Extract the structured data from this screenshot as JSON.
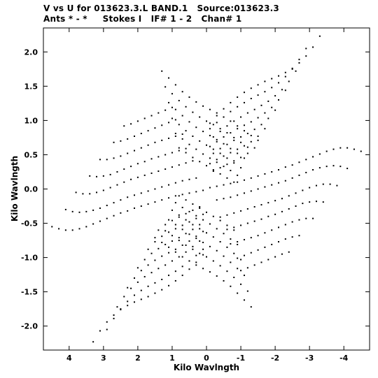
{
  "header": {
    "line1": "V vs U for 013623.3.L BAND.1   Source:013623.3",
    "line2": "Ants * - *     Stokes I   IF# 1 - 2   Chan# 1"
  },
  "chart_data": {
    "type": "scatter",
    "title": "V vs U for 013623.3.L BAND.1   Source:013623.3",
    "subtitle": "Ants * - *     Stokes I   IF# 1 - 2   Chan# 1",
    "xlabel": "Kilo Wavlngth",
    "ylabel": "Kilo Wavlngth",
    "xlim": [
      4.75,
      -4.75
    ],
    "ylim": [
      -2.35,
      2.35
    ],
    "x_reversed": true,
    "grid": false,
    "x_ticks": [
      4,
      3,
      2,
      1,
      0,
      -1,
      -2,
      -3,
      -4
    ],
    "x_tick_labels": [
      "4",
      "3",
      "2",
      "1",
      "0",
      "-1",
      "-2",
      "-3",
      "-4"
    ],
    "y_ticks": [
      2.0,
      1.5,
      1.0,
      0.5,
      0.0,
      -0.5,
      -1.0,
      -1.5,
      -2.0
    ],
    "y_tick_labels": [
      "2.0",
      "1.5",
      "1.0",
      "0.5",
      "0.0",
      "-0.5",
      "-1.0",
      "-1.5",
      "-2.0"
    ],
    "points_u": [
      -3.3,
      -3.1,
      -2.9,
      -2.7,
      -2.5,
      -2.3,
      -2.1,
      -1.9,
      -1.7,
      -1.5,
      -1.3,
      -1.1,
      -0.9,
      -0.7,
      -0.5,
      -0.3,
      -0.1,
      -2.9,
      -2.7,
      -2.5,
      -2.3,
      -2.1,
      -1.9,
      -1.7,
      -1.5,
      -1.3,
      -1.1,
      -0.9,
      -0.7,
      -0.5,
      -0.3,
      -0.1,
      -2.6,
      -2.4,
      -2.2,
      -2.0,
      -1.8,
      -1.6,
      -1.4,
      -1.2,
      -1.0,
      -0.8,
      -0.6,
      -0.4,
      -0.2,
      -2.3,
      -2.1,
      -1.9,
      -1.7,
      -1.5,
      -1.3,
      -1.1,
      -0.9,
      -0.7,
      -0.5,
      -0.3,
      -0.1,
      -2.0,
      -1.8,
      -1.6,
      -1.4,
      -1.2,
      -1.0,
      -0.8,
      -0.6,
      -0.4,
      -0.2,
      -1.7,
      -1.5,
      -1.3,
      -1.1,
      -0.9,
      -0.7,
      -0.5,
      -0.3,
      -0.1,
      -1.4,
      -1.2,
      -1.0,
      -0.8,
      -0.6,
      -0.4,
      -0.2,
      1.3,
      1.1,
      0.9,
      0.7,
      0.5,
      0.3,
      0.1,
      -0.1,
      -0.3,
      -0.5,
      -0.7,
      -0.9,
      -1.1,
      -1.3,
      -1.5,
      1.2,
      1.0,
      0.8,
      0.6,
      0.4,
      0.2,
      0.0,
      -0.2,
      -0.4,
      -0.6,
      -0.8,
      -1.0,
      -1.2,
      1.1,
      0.9,
      0.7,
      0.5,
      0.3,
      0.1,
      -0.1,
      -0.3,
      -0.5,
      -0.7,
      -0.9,
      -1.1,
      1.0,
      0.8,
      0.6,
      0.4,
      0.2,
      0.0,
      -0.2,
      -0.4,
      -0.6,
      -0.8,
      -1.0,
      0.9,
      0.7,
      0.5,
      0.3,
      0.1,
      -0.1,
      -0.3,
      -0.5,
      -0.7,
      -0.9,
      0.8,
      0.6,
      0.4,
      0.2,
      0.0,
      -0.2,
      -0.4,
      -0.6,
      -0.8,
      -4.5,
      -4.3,
      -4.1,
      -3.9,
      -3.7,
      -3.5,
      -3.3,
      -3.1,
      -2.9,
      -2.7,
      -2.5,
      -2.3,
      -2.1,
      -1.9,
      -1.7,
      -1.5,
      -1.3,
      -1.1,
      -0.9,
      -0.7,
      -0.5,
      -0.3,
      -0.1,
      -4.1,
      -3.9,
      -3.7,
      -3.5,
      -3.3,
      -3.1,
      -2.9,
      -2.7,
      -2.5,
      -2.3,
      -2.1,
      -1.9,
      -1.7,
      -1.5,
      -1.3,
      -1.1,
      -0.9,
      -0.7,
      -0.5,
      -0.3,
      -3.8,
      -3.6,
      -3.4,
      -3.2,
      -3.0,
      -2.8,
      -2.6,
      -2.4,
      -2.2,
      -2.0,
      -1.8,
      -1.6,
      -1.4,
      -1.2,
      -1.0,
      -0.8,
      -0.6,
      -0.4,
      -3.4,
      -3.2,
      -3.0,
      -2.8,
      -2.6,
      -2.4,
      -2.2,
      -2.0,
      -1.8,
      -1.6,
      -1.4,
      -1.2,
      -1.0,
      -0.8,
      -0.6,
      -3.1,
      -2.9,
      -2.7,
      -2.5,
      -2.3,
      -2.1,
      -1.9,
      -1.7,
      -1.5,
      -1.3,
      -1.1,
      -0.9,
      -0.7,
      -2.7,
      -2.5,
      -2.3,
      -2.1,
      -1.9,
      -1.7,
      -1.5,
      -1.3,
      -1.1,
      -0.9,
      -2.4,
      -2.2,
      -2.0,
      -1.8,
      -1.6,
      -1.4,
      -1.2,
      -1.0
    ],
    "points_v": [
      2.23,
      2.07,
      1.94,
      1.84,
      1.76,
      1.7,
      1.65,
      1.61,
      1.57,
      1.52,
      1.47,
      1.41,
      1.34,
      1.26,
      1.17,
      1.07,
      0.96,
      2.05,
      1.89,
      1.75,
      1.64,
      1.55,
      1.48,
      1.42,
      1.37,
      1.32,
      1.26,
      1.2,
      1.13,
      1.05,
      0.97,
      0.88,
      1.72,
      1.57,
      1.45,
      1.36,
      1.28,
      1.22,
      1.16,
      1.11,
      1.05,
      0.99,
      0.92,
      0.84,
      0.76,
      1.44,
      1.3,
      1.19,
      1.11,
      1.04,
      0.98,
      0.93,
      0.88,
      0.82,
      0.76,
      0.69,
      0.62,
      1.15,
      1.03,
      0.94,
      0.87,
      0.81,
      0.76,
      0.71,
      0.65,
      0.59,
      0.52,
      0.88,
      0.77,
      0.69,
      0.63,
      0.58,
      0.53,
      0.48,
      0.43,
      0.37,
      0.6,
      0.52,
      0.46,
      0.41,
      0.36,
      0.31,
      0.26,
      1.72,
      1.62,
      1.52,
      1.42,
      1.34,
      1.27,
      1.21,
      1.16,
      1.11,
      1.05,
      0.99,
      0.92,
      0.85,
      0.78,
      0.71,
      1.49,
      1.39,
      1.29,
      1.2,
      1.12,
      1.05,
      0.99,
      0.94,
      0.88,
      0.82,
      0.75,
      0.68,
      0.61,
      1.26,
      1.16,
      1.07,
      0.98,
      0.9,
      0.84,
      0.78,
      0.72,
      0.66,
      0.59,
      0.52,
      0.45,
      1.03,
      0.94,
      0.85,
      0.77,
      0.7,
      0.64,
      0.58,
      0.52,
      0.45,
      0.38,
      0.31,
      0.81,
      0.73,
      0.65,
      0.58,
      0.51,
      0.45,
      0.39,
      0.33,
      0.27,
      0.2,
      0.6,
      0.53,
      0.46,
      0.4,
      0.34,
      0.28,
      0.22,
      0.16,
      0.1,
      0.55,
      0.58,
      0.6,
      0.6,
      0.58,
      0.55,
      0.51,
      0.47,
      0.43,
      0.39,
      0.35,
      0.32,
      0.28,
      0.25,
      0.22,
      0.19,
      0.16,
      0.13,
      0.1,
      0.08,
      0.06,
      0.04,
      0.02,
      0.3,
      0.33,
      0.34,
      0.33,
      0.31,
      0.28,
      0.24,
      0.2,
      0.16,
      0.12,
      0.09,
      0.06,
      0.03,
      0.0,
      -0.03,
      -0.06,
      -0.09,
      -0.12,
      -0.14,
      -0.16,
      0.05,
      0.07,
      0.07,
      0.05,
      0.02,
      -0.02,
      -0.06,
      -0.1,
      -0.14,
      -0.17,
      -0.2,
      -0.23,
      -0.26,
      -0.29,
      -0.32,
      -0.35,
      -0.38,
      -0.41,
      -0.19,
      -0.18,
      -0.19,
      -0.21,
      -0.25,
      -0.29,
      -0.33,
      -0.37,
      -0.4,
      -0.44,
      -0.47,
      -0.5,
      -0.53,
      -0.56,
      -0.59,
      -0.43,
      -0.43,
      -0.45,
      -0.48,
      -0.52,
      -0.56,
      -0.6,
      -0.64,
      -0.68,
      -0.71,
      -0.74,
      -0.77,
      -0.8,
      -0.68,
      -0.7,
      -0.73,
      -0.77,
      -0.81,
      -0.85,
      -0.89,
      -0.93,
      -0.97,
      -1.01,
      -0.92,
      -0.95,
      -0.99,
      -1.03,
      -1.07,
      -1.11,
      -1.15,
      -1.19
    ]
  }
}
